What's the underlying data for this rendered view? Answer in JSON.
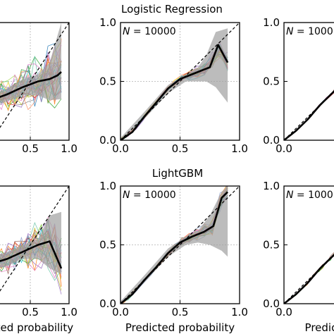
{
  "figure": {
    "row_titles": [
      "Logistic Regression",
      "LightGBM"
    ],
    "xlabel": "Predicted probability",
    "annotation": "N = 10000"
  },
  "chart_data": [
    {
      "type": "line",
      "row": 0,
      "col": 0,
      "title": "",
      "xlabel": "",
      "annotation": "",
      "xlim": [
        -0.3,
        1.0
      ],
      "ylim": [
        0,
        1.0
      ],
      "xticks": [
        0.5,
        1.0
      ],
      "xtick_labels": [
        "0.5",
        "1.0"
      ],
      "yticks": [],
      "ytick_labels": [],
      "diagonal": true,
      "grid": "dotted at 0.5",
      "band": {
        "x": [
          0.0,
          0.2,
          0.4,
          0.6,
          0.75,
          0.9
        ],
        "lower": [
          0.28,
          0.33,
          0.38,
          0.38,
          0.34,
          0.35
        ],
        "upper": [
          0.38,
          0.44,
          0.52,
          0.56,
          0.66,
          1.0
        ]
      },
      "mean": {
        "x": [
          -0.3,
          0.0,
          0.2,
          0.4,
          0.6,
          0.75,
          0.85,
          0.9
        ],
        "y": [
          0.26,
          0.34,
          0.39,
          0.45,
          0.5,
          0.52,
          0.55,
          0.58
        ]
      },
      "thin_lines": 30,
      "thin_spread": 0.14,
      "thin_start": 0.05,
      "seed": 11
    },
    {
      "type": "line",
      "row": 0,
      "col": 1,
      "title": "",
      "xlabel": "",
      "annotation": "N = 10000",
      "xlim": [
        0,
        1.0
      ],
      "ylim": [
        0,
        1.0
      ],
      "xticks": [
        0.0,
        0.5,
        1.0
      ],
      "xtick_labels": [
        "0.0",
        "0.5",
        "1.0"
      ],
      "yticks": [
        0.0,
        0.5,
        1.0
      ],
      "ytick_labels": [
        "0.0",
        "0.5",
        "1.0"
      ],
      "diagonal": true,
      "grid": "dotted at 0.5",
      "band": {
        "x": [
          0.0,
          0.2,
          0.4,
          0.55,
          0.65,
          0.72,
          0.8,
          0.9
        ],
        "lower": [
          0.0,
          0.18,
          0.4,
          0.5,
          0.5,
          0.5,
          0.45,
          0.32
        ],
        "upper": [
          0.02,
          0.24,
          0.47,
          0.56,
          0.62,
          0.72,
          0.92,
          0.95
        ]
      },
      "mean": {
        "x": [
          0.0,
          0.1,
          0.2,
          0.3,
          0.4,
          0.5,
          0.6,
          0.7,
          0.75,
          0.82,
          0.9
        ],
        "y": [
          0.0,
          0.07,
          0.2,
          0.32,
          0.44,
          0.52,
          0.56,
          0.6,
          0.62,
          0.81,
          0.66
        ]
      },
      "thin_lines": 30,
      "thin_spread": 0.06,
      "thin_start": 0.4,
      "seed": 23
    },
    {
      "type": "line",
      "row": 0,
      "col": 2,
      "title": "",
      "xlabel": "",
      "annotation": "N = 1000",
      "xlim": [
        0,
        0.45
      ],
      "ylim": [
        0,
        1.0
      ],
      "xticks": [
        0.0
      ],
      "xtick_labels": [
        "0.0"
      ],
      "yticks": [
        0.0,
        0.5,
        1.0
      ],
      "ytick_labels": [
        "0.0",
        "0.5",
        "1.0"
      ],
      "diagonal": true,
      "grid": "none",
      "band": null,
      "mean": {
        "x": [
          0.0,
          0.1,
          0.2,
          0.3,
          0.45
        ],
        "y": [
          0.0,
          0.08,
          0.18,
          0.3,
          0.45
        ]
      },
      "thin_lines": 8,
      "thin_spread": 0.01,
      "thin_start": 0.0,
      "seed": 31
    },
    {
      "type": "line",
      "row": 1,
      "col": 0,
      "title": "",
      "xlabel": "Predicted probability",
      "annotation": "",
      "xlim": [
        -0.3,
        1.0
      ],
      "ylim": [
        0,
        1.0
      ],
      "xticks": [
        0.5,
        1.0
      ],
      "xtick_labels": [
        "0.5",
        "1.0"
      ],
      "yticks": [],
      "ytick_labels": [],
      "diagonal": true,
      "grid": "dotted at 0.5",
      "band": {
        "x": [
          0.0,
          0.2,
          0.4,
          0.6,
          0.75,
          0.9
        ],
        "lower": [
          0.3,
          0.32,
          0.38,
          0.38,
          0.3,
          0.25
        ],
        "upper": [
          0.4,
          0.44,
          0.5,
          0.55,
          0.75,
          0.78
        ]
      },
      "mean": {
        "x": [
          -0.3,
          0.0,
          0.2,
          0.4,
          0.6,
          0.75,
          0.9
        ],
        "y": [
          0.28,
          0.34,
          0.38,
          0.44,
          0.5,
          0.53,
          0.3
        ]
      },
      "thin_lines": 30,
      "thin_spread": 0.13,
      "thin_start": 0.05,
      "seed": 41
    },
    {
      "type": "line",
      "row": 1,
      "col": 1,
      "title": "",
      "xlabel": "Predicted probability",
      "annotation": "N = 10000",
      "xlim": [
        0,
        1.0
      ],
      "ylim": [
        0,
        1.0
      ],
      "xticks": [
        0.0,
        0.5,
        1.0
      ],
      "xtick_labels": [
        "0.0",
        "0.5",
        "1.0"
      ],
      "yticks": [
        0.0,
        0.5,
        1.0
      ],
      "ytick_labels": [
        "0.0",
        "0.5",
        "1.0"
      ],
      "diagonal": true,
      "grid": "dotted at 0.5",
      "band": {
        "x": [
          0.0,
          0.2,
          0.4,
          0.55,
          0.65,
          0.75,
          0.85,
          0.9
        ],
        "lower": [
          0.0,
          0.18,
          0.4,
          0.5,
          0.52,
          0.5,
          0.45,
          0.4
        ],
        "upper": [
          0.02,
          0.24,
          0.47,
          0.57,
          0.62,
          0.75,
          0.95,
          1.0
        ]
      },
      "mean": {
        "x": [
          0.0,
          0.1,
          0.2,
          0.3,
          0.4,
          0.5,
          0.6,
          0.7,
          0.78,
          0.85,
          0.9
        ],
        "y": [
          0.0,
          0.08,
          0.2,
          0.31,
          0.43,
          0.52,
          0.57,
          0.61,
          0.66,
          0.9,
          0.95
        ]
      },
      "thin_lines": 30,
      "thin_spread": 0.06,
      "thin_start": 0.4,
      "seed": 53
    },
    {
      "type": "line",
      "row": 1,
      "col": 2,
      "title": "",
      "xlabel": "Predicte",
      "annotation": "N = 1000",
      "xlim": [
        0,
        0.45
      ],
      "ylim": [
        0,
        1.0
      ],
      "xticks": [
        0.0
      ],
      "xtick_labels": [
        "0.0"
      ],
      "yticks": [
        0.0,
        0.5,
        1.0
      ],
      "ytick_labels": [
        "0.0",
        "0.5",
        "1.0"
      ],
      "diagonal": true,
      "grid": "none",
      "band": null,
      "mean": {
        "x": [
          0.0,
          0.1,
          0.2,
          0.3,
          0.45
        ],
        "y": [
          0.0,
          0.08,
          0.18,
          0.3,
          0.45
        ]
      },
      "thin_lines": 8,
      "thin_spread": 0.01,
      "thin_start": 0.0,
      "seed": 67
    }
  ],
  "colors": {
    "mean_line": "#000000",
    "band": "#a0a0a0",
    "diagonal": "#000000",
    "grid": "#b0b0b0",
    "thin_palette": [
      "#1f77b4",
      "#ff7f0e",
      "#2ca02c",
      "#d62728",
      "#9467bd",
      "#8c564b",
      "#e377c2",
      "#7f7f7f",
      "#bcbd22",
      "#17becf",
      "#66c2a5",
      "#fc8d62",
      "#8da0cb",
      "#e78ac3",
      "#a6d854",
      "#ffd92f"
    ]
  }
}
